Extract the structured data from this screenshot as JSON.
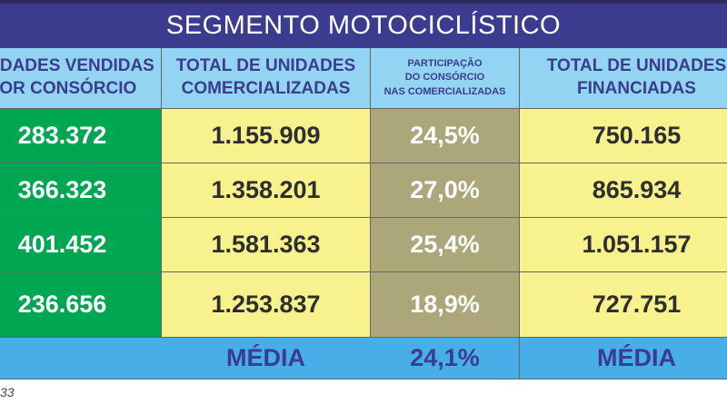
{
  "title": "SEGMENTO MOTOCICLÍSTICO",
  "headers": [
    [
      "UNIDADES VENDIDAS",
      "POR CONSÓRCIO"
    ],
    [
      "TOTAL DE UNIDADES",
      "COMERCIALIZADAS"
    ],
    [
      "PARTICIPAÇÃO",
      "DO CONSÓRCIO",
      "NAS COMERCIALIZADAS"
    ],
    [
      "TOTAL DE UNIDADES",
      "FINANCIADAS"
    ]
  ],
  "rows": [
    [
      "283.372",
      "1.155.909",
      "24,5%",
      "750.165"
    ],
    [
      "366.323",
      "1.358.201",
      "27,0%",
      "865.934"
    ],
    [
      "401.452",
      "1.581.363",
      "25,4%",
      "1.051.157"
    ],
    [
      "236.656",
      "1.253.837",
      "18,9%",
      "727.751"
    ]
  ],
  "summary": {
    "label_left": "MÉDIA",
    "value": "24,1%",
    "label_right": "MÉDIA"
  },
  "footer": "33",
  "colors": {
    "title": "#3c3c8e",
    "header": "#93d4f2",
    "consorcio": "#00a651",
    "totals": "#f7f18e",
    "participacao": "#aca77a",
    "summary": "#47aee8"
  }
}
